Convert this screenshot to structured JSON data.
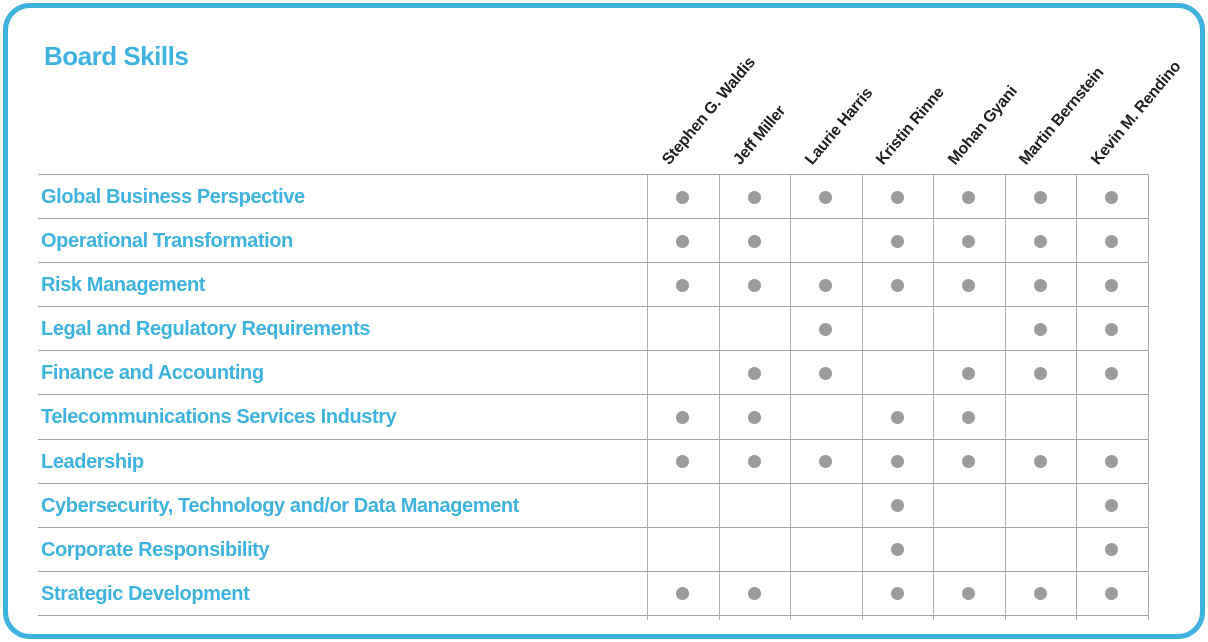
{
  "colors": {
    "accent": "#3eb3e0",
    "name_color": "#231f20",
    "dot_color": "#9b9b9b",
    "h_grid_line": "#a2a2a2",
    "v_grid_line": "#adadad",
    "background": "#ffffff"
  },
  "chart_data": {
    "type": "table",
    "title": "Board Skills",
    "legend_note": "dot = board member has the skill",
    "columns": [
      "Stephen G. Waldis",
      "Jeff Miller",
      "Laurie Harris",
      "Kristin Rinne",
      "Mohan Gyani",
      "Martin Bernstein",
      "Kevin M. Rendino"
    ],
    "rows": [
      "Global Business Perspective",
      "Operational Transformation",
      "Risk Management",
      "Legal and Regulatory Requirements",
      "Finance and Accounting",
      "Telecommunications Services Industry",
      "Leadership",
      "Cybersecurity, Technology and/or Data Management",
      "Corporate Responsibility",
      "Strategic Development"
    ],
    "matrix": [
      [
        1,
        1,
        1,
        1,
        1,
        1,
        1
      ],
      [
        1,
        1,
        0,
        1,
        1,
        1,
        1
      ],
      [
        1,
        1,
        1,
        1,
        1,
        1,
        1
      ],
      [
        0,
        0,
        1,
        0,
        0,
        1,
        1
      ],
      [
        0,
        1,
        1,
        0,
        1,
        1,
        1
      ],
      [
        1,
        1,
        0,
        1,
        1,
        0,
        0
      ],
      [
        1,
        1,
        1,
        1,
        1,
        1,
        1
      ],
      [
        0,
        0,
        0,
        1,
        0,
        0,
        1
      ],
      [
        0,
        0,
        0,
        1,
        0,
        0,
        1
      ],
      [
        1,
        1,
        0,
        1,
        1,
        1,
        1
      ]
    ]
  }
}
